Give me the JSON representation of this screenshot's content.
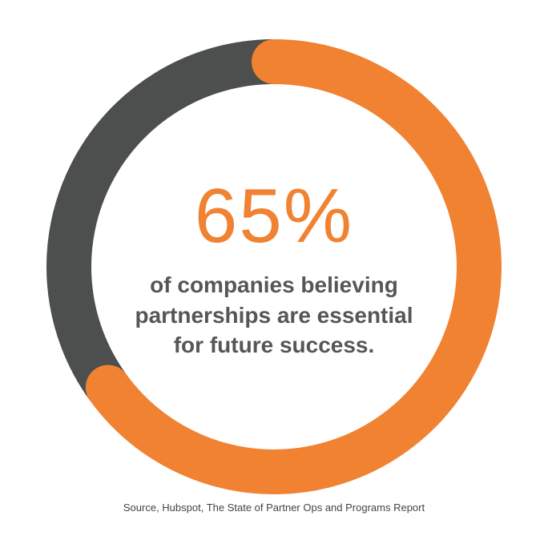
{
  "chart_data": {
    "type": "donut",
    "values": [
      65,
      35
    ],
    "value_labels": [
      "65%",
      null
    ],
    "colors": [
      "#f08232",
      "#4d4f4f"
    ],
    "description": "of companies believing partnerships are essential for future success.",
    "source": "Source, Hubspot, The State of Partner Ops and Programs Report"
  }
}
